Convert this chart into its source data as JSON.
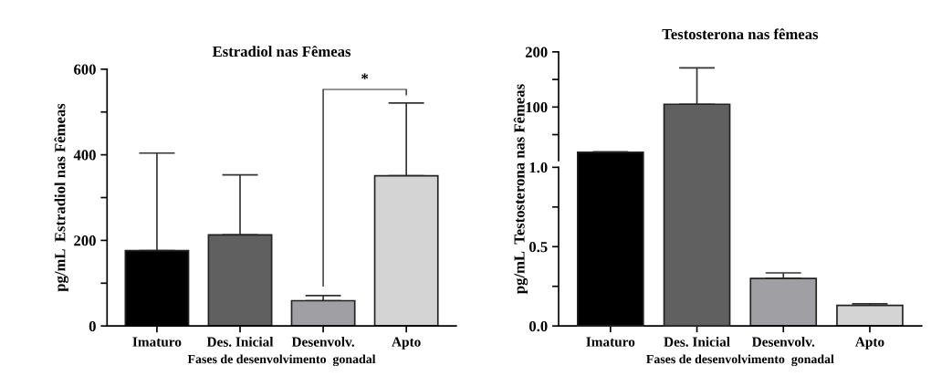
{
  "chart_data": [
    {
      "type": "bar",
      "title": "Estradiol nas Fêmeas",
      "xlabel": "Fases de desenvolvimento  gonadal",
      "ylabel": "pg/mL  Estradiol nas Fêmeas",
      "categories": [
        "Imaturo",
        "Des. Inicial",
        "Desenvolv.",
        "Apto"
      ],
      "values": [
        176,
        213,
        59,
        351
      ],
      "colors": [
        "#000000",
        "#606060",
        "#a0a0a4",
        "#d4d4d4"
      ],
      "errors": [
        [
          176,
          404
        ],
        [
          213,
          353
        ],
        [
          59,
          71
        ],
        [
          351,
          521
        ]
      ],
      "ylim": [
        0,
        600
      ],
      "yticks": [
        0,
        {
          "value": 100,
          "label": null
        },
        200,
        {
          "value": 300,
          "label": null
        },
        400,
        {
          "value": 500,
          "label": null
        },
        600
      ],
      "annotations": [
        "*"
      ],
      "grid": false,
      "legend": false
    },
    {
      "type": "bar",
      "title": "Testosterona nas fêmeas",
      "ylabel": "pg/mL  Testosterona nas Fêmeas",
      "categories": [
        null,
        null
      ],
      "values": [
        18,
        105
      ],
      "colors": [
        "#000000",
        "#606060"
      ],
      "errors": [
        [
          18,
          19
        ],
        [
          105,
          171
        ]
      ],
      "ylim": [
        3,
        200
      ],
      "yticks": [
        {
          "value": 50,
          "label": null
        },
        100,
        {
          "value": 150,
          "label": null
        },
        200
      ],
      "tick_labels": "y",
      "grid": false,
      "legend": false
    },
    {
      "type": "bar",
      "xlabel": "Fases de desenvolvimento  gonadal",
      "categories": [
        "Imaturo",
        "Des. Inicial",
        "Desenvolv.",
        "Apto"
      ],
      "values": [
        null,
        null,
        0.3,
        0.13
      ],
      "colors": [
        "#000000",
        "#606060",
        "#a0a0a4",
        "#d4d4d4"
      ],
      "errors": [
        null,
        null,
        [
          0.3,
          0.335
        ],
        [
          0.13,
          0.14
        ]
      ],
      "ylim": [
        0,
        1
      ],
      "yticks": [
        {
          "value": 0,
          "label": "0.0"
        },
        {
          "value": 0.25,
          "label": null
        },
        {
          "value": 0.5,
          "label": "0.5"
        },
        {
          "value": 0.75,
          "label": null
        },
        {
          "value": 1,
          "label": "1.0"
        }
      ],
      "grid": false,
      "legend": false
    }
  ]
}
